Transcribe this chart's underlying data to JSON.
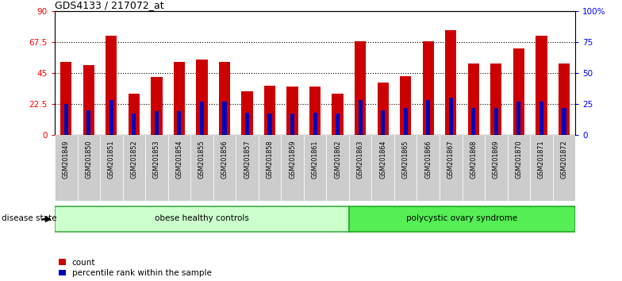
{
  "title": "GDS4133 / 217072_at",
  "samples": [
    "GSM201849",
    "GSM201850",
    "GSM201851",
    "GSM201852",
    "GSM201853",
    "GSM201854",
    "GSM201855",
    "GSM201856",
    "GSM201857",
    "GSM201858",
    "GSM201859",
    "GSM201861",
    "GSM201862",
    "GSM201863",
    "GSM201864",
    "GSM201865",
    "GSM201866",
    "GSM201867",
    "GSM201868",
    "GSM201869",
    "GSM201870",
    "GSM201871",
    "GSM201872"
  ],
  "counts": [
    53,
    51,
    72,
    30,
    42,
    53,
    55,
    53,
    32,
    36,
    35,
    35,
    30,
    68,
    38,
    43,
    68,
    76,
    52,
    52,
    63,
    72,
    52
  ],
  "percentiles": [
    25,
    20,
    28,
    17,
    19,
    19,
    27,
    27,
    18,
    17,
    17,
    18,
    17,
    28,
    20,
    22,
    28,
    30,
    22,
    22,
    27,
    27,
    22
  ],
  "group1_count": 13,
  "group_colors": {
    "obese healthy controls": "#ccffcc",
    "polycystic ovary syndrome": "#55ee55"
  },
  "bar_color": "#cc0000",
  "percentile_color": "#0000bb",
  "ylim_left": [
    0,
    90
  ],
  "ylim_right": [
    0,
    100
  ],
  "yticks_left": [
    0,
    22.5,
    45,
    67.5,
    90
  ],
  "ytick_labels_left": [
    "0",
    "22.5",
    "45",
    "67.5",
    "90"
  ],
  "yticks_right": [
    0,
    25,
    50,
    75,
    100
  ],
  "ytick_labels_right": [
    "0",
    "25",
    "50",
    "75",
    "100%"
  ],
  "hlines": [
    22.5,
    45,
    67.5
  ],
  "bar_width": 0.5,
  "pct_bar_width": 0.18,
  "group_label": "disease state",
  "group1_label": "obese healthy controls",
  "group2_label": "polycystic ovary syndrome",
  "legend_count": "count",
  "legend_percentile": "percentile rank within the sample",
  "background_color": "#ffffff"
}
